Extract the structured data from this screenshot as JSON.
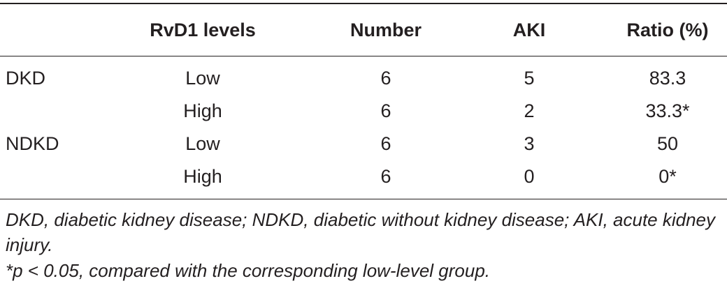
{
  "table": {
    "headers": [
      "",
      "RvD1 levels",
      "Number",
      "AKI",
      "Ratio (%)"
    ],
    "rows": [
      {
        "group": "DKD",
        "rvd1": "Low",
        "number": "6",
        "aki": "5",
        "ratio": "83.3"
      },
      {
        "group": "",
        "rvd1": "High",
        "number": "6",
        "aki": "2",
        "ratio": "33.3*"
      },
      {
        "group": "NDKD",
        "rvd1": "Low",
        "number": "6",
        "aki": "3",
        "ratio": "50"
      },
      {
        "group": "",
        "rvd1": "High",
        "number": "6",
        "aki": "0",
        "ratio": "0*"
      }
    ]
  },
  "footnotes": {
    "abbreviations": "DKD, diabetic kidney disease; NDKD, diabetic without kidney disease; AKI, acute kidney injury.",
    "significance": "*p < 0.05, compared with the corresponding low-level group."
  }
}
